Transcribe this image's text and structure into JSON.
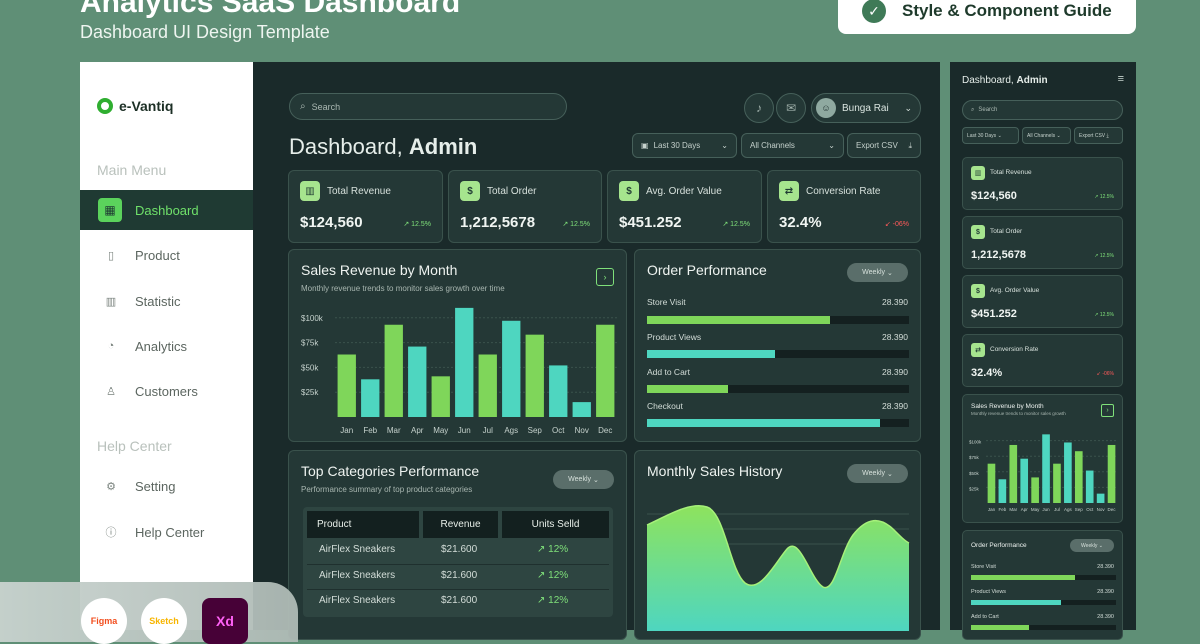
{
  "hero": {
    "title": "Analytics SaaS Dashboard",
    "subtitle": "Dashboard UI Design Template",
    "guide_label": "Style & Component Guide",
    "guide_icon": "check-circle-icon"
  },
  "sidebar": {
    "brand": "e-Vantiq",
    "main_menu_label": "Main Menu",
    "help_label": "Help Center",
    "items": [
      {
        "label": "Dashboard",
        "icon": "grid-icon",
        "active": true
      },
      {
        "label": "Product",
        "icon": "clipboard-icon"
      },
      {
        "label": "Statistic",
        "icon": "bar-chart-icon"
      },
      {
        "label": "Analytics",
        "icon": "pie-chart-icon"
      },
      {
        "label": "Customers",
        "icon": "user-icon"
      }
    ],
    "help_items": [
      {
        "label": "Setting",
        "icon": "gear-icon"
      },
      {
        "label": "Help Center",
        "icon": "info-icon"
      }
    ]
  },
  "header": {
    "search_placeholder": "Search",
    "user_name": "Bunga Rai",
    "title_prefix": "Dashboard,",
    "title_name": "Admin",
    "filters": {
      "date": "Last 30 Days",
      "channels": "All Channels",
      "export": "Export CSV"
    }
  },
  "kpis": [
    {
      "label": "Total Revenue",
      "value": "$124,560",
      "change": "12.5%",
      "direction": "up",
      "icon": "chart-icon"
    },
    {
      "label": "Total Order",
      "value": "1,212,5678",
      "change": "12.5%",
      "direction": "up",
      "icon": "bag-icon"
    },
    {
      "label": "Avg. Order Value",
      "value": "$451.252",
      "change": "12.5%",
      "direction": "up",
      "icon": "dollar-icon"
    },
    {
      "label": "Conversion Rate",
      "value": "32.4%",
      "change": "-06%",
      "direction": "down",
      "icon": "swap-icon"
    }
  ],
  "sales_chart": {
    "title": "Sales Revenue by Month",
    "subtitle": "Monthly revenue trends to monitor sales growth over time"
  },
  "chart_data": {
    "type": "bar",
    "categories": [
      "Jan",
      "Feb",
      "Mar",
      "Apr",
      "May",
      "Jun",
      "Jul",
      "Ags",
      "Sep",
      "Oct",
      "Nov",
      "Dec"
    ],
    "values": [
      63,
      38,
      93,
      71,
      41,
      110,
      63,
      97,
      83,
      52,
      15,
      93
    ],
    "y_ticks": [
      "$100k",
      "$75k",
      "$50k",
      "$25k"
    ],
    "ylim": [
      0,
      125
    ],
    "bar_colors": [
      "#7fd65a",
      "#4ed6c0",
      "#7fd65a",
      "#4ed6c0",
      "#7fd65a",
      "#4ed6c0",
      "#7fd65a",
      "#4ed6c0",
      "#7fd65a",
      "#4ed6c0",
      "#4ed6c0",
      "#7fd65a"
    ],
    "grid": true
  },
  "order_performance": {
    "title": "Order Performance",
    "period": "Weekly",
    "rows": [
      {
        "label": "Store Visit",
        "value": "28.390",
        "fraction": 0.7,
        "color": "#7fd65a"
      },
      {
        "label": "Product Views",
        "value": "28.390",
        "fraction": 0.49,
        "color": "#4ed6c0"
      },
      {
        "label": "Add to Cart",
        "value": "28.390",
        "fraction": 0.31,
        "color": "#7fd65a"
      },
      {
        "label": "Checkout",
        "value": "28.390",
        "fraction": 0.89,
        "color": "#4ed6c0"
      }
    ]
  },
  "top_categories": {
    "title": "Top Categories Performance",
    "subtitle": "Performance summary of top product categories",
    "period": "Weekly",
    "columns": [
      "Product",
      "Revenue",
      "Units Selld"
    ],
    "rows": [
      [
        "AirFlex Sneakers",
        "$21.600",
        "12%"
      ],
      [
        "AirFlex Sneakers",
        "$21.600",
        "12%"
      ],
      [
        "AirFlex Sneakers",
        "$21.600",
        "12%"
      ]
    ]
  },
  "monthly_history": {
    "title": "Monthly Sales History",
    "period": "Weekly"
  },
  "mobile": {
    "title_prefix": "Dashboard,",
    "title_name": "Admin",
    "search_placeholder": "Search",
    "filters": [
      "Last 30 Days",
      "All Channels",
      "Export CSV"
    ],
    "sales_title": "Sales Revenue by Month",
    "sales_subtitle": "Monthly revenue trends to monitor sales growth",
    "y_ticks": [
      "$100k",
      "$75k",
      "$50k",
      "$25k"
    ],
    "order_title": "Order Performance",
    "order_period": "Weekly",
    "order_rows": [
      {
        "label": "Store Visit",
        "value": "28.390",
        "fraction": 0.72,
        "color": "#7fd65a"
      },
      {
        "label": "Product Views",
        "value": "28.390",
        "fraction": 0.62,
        "color": "#4ed6c0"
      },
      {
        "label": "Add to Cart",
        "value": "28.390",
        "fraction": 0.4,
        "color": "#7fd65a"
      }
    ]
  },
  "tools": [
    "Figma",
    "Sketch",
    "Xd"
  ],
  "colors": {
    "accent_green": "#7fd65a",
    "accent_teal": "#4ed6c0",
    "panel": "#1a2a2a",
    "card": "#243836",
    "negative": "#ff5a5a"
  }
}
